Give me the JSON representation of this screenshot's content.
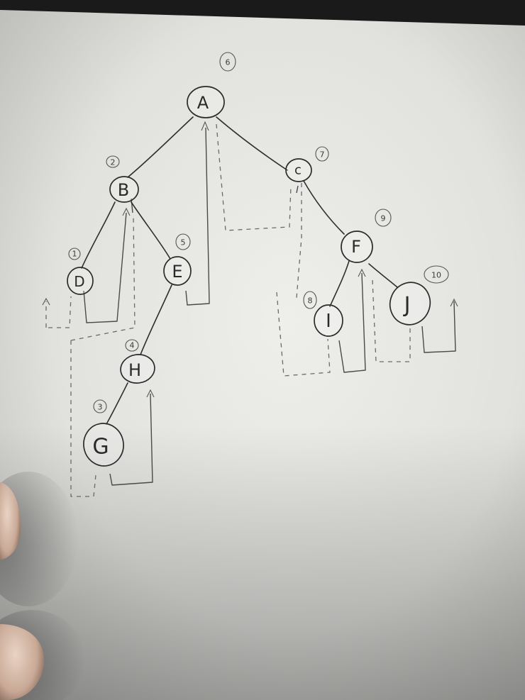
{
  "diagram": {
    "kind": "binary-tree-traversal-sketch",
    "nodes": [
      {
        "id": "A",
        "label": "A",
        "order": "6"
      },
      {
        "id": "B",
        "label": "B",
        "order": "2"
      },
      {
        "id": "C",
        "label": "c",
        "order": "7"
      },
      {
        "id": "D",
        "label": "D",
        "order": "1"
      },
      {
        "id": "E",
        "label": "E",
        "order": "5"
      },
      {
        "id": "F",
        "label": "F",
        "order": "9"
      },
      {
        "id": "H",
        "label": "H",
        "order": "4"
      },
      {
        "id": "G",
        "label": "G",
        "order": "3"
      },
      {
        "id": "I",
        "label": "I",
        "order": "8"
      },
      {
        "id": "J",
        "label": "J",
        "order": "10"
      }
    ],
    "edges": [
      {
        "from": "A",
        "to": "B"
      },
      {
        "from": "A",
        "to": "C"
      },
      {
        "from": "B",
        "to": "D"
      },
      {
        "from": "B",
        "to": "E"
      },
      {
        "from": "E",
        "to": "H"
      },
      {
        "from": "H",
        "to": "G"
      },
      {
        "from": "C",
        "to": "F"
      },
      {
        "from": "F",
        "to": "I"
      },
      {
        "from": "F",
        "to": "J"
      }
    ]
  }
}
